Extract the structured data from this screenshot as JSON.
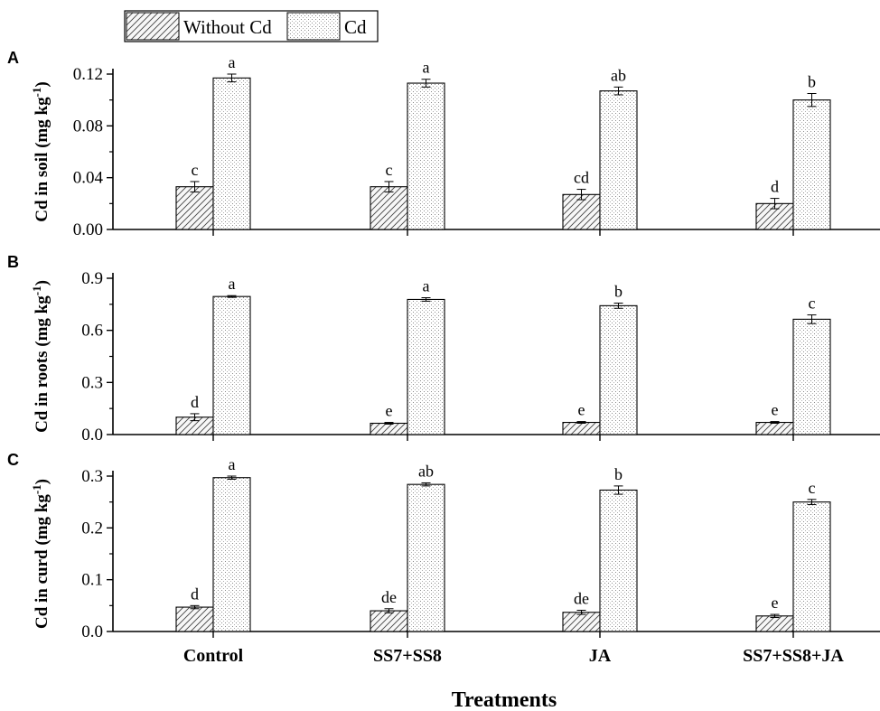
{
  "legend": [
    {
      "key": "without",
      "label": "Without Cd"
    },
    {
      "key": "cd",
      "label": "Cd"
    }
  ],
  "xlabel": "Treatments",
  "chart_data": [
    {
      "type": "bar",
      "panel": "A",
      "ylabel": "Cd in soil (mg kg",
      "ylabel_sup": "-1",
      "ylabel_close": ")",
      "ylim": [
        0,
        0.12
      ],
      "yticks": [
        0,
        0.04,
        0.08,
        0.12
      ],
      "ytick_labels": [
        "0.00",
        "0.04",
        "0.08",
        "0.12"
      ],
      "categories": [
        "Control",
        "SS7+SS8",
        "JA",
        "SS7+SS8+JA"
      ],
      "series": [
        {
          "name": "Without Cd",
          "values": [
            0.033,
            0.033,
            0.027,
            0.02
          ],
          "errors": [
            0.004,
            0.004,
            0.004,
            0.004
          ],
          "letters": [
            "c",
            "c",
            "cd",
            "d"
          ]
        },
        {
          "name": "Cd",
          "values": [
            0.117,
            0.113,
            0.107,
            0.1
          ],
          "errors": [
            0.003,
            0.003,
            0.003,
            0.005
          ],
          "letters": [
            "a",
            "a",
            "ab",
            "b"
          ]
        }
      ]
    },
    {
      "type": "bar",
      "panel": "B",
      "ylabel": "Cd in roots (mg kg",
      "ylabel_sup": "-1",
      "ylabel_close": ")",
      "ylim": [
        0,
        0.9
      ],
      "yticks": [
        0,
        0.3,
        0.6,
        0.9
      ],
      "ytick_labels": [
        "0.0",
        "0.3",
        "0.6",
        "0.9"
      ],
      "categories": [
        "Control",
        "SS7+SS8",
        "JA",
        "SS7+SS8+JA"
      ],
      "series": [
        {
          "name": "Without Cd",
          "values": [
            0.1,
            0.065,
            0.07,
            0.07
          ],
          "errors": [
            0.02,
            0.005,
            0.005,
            0.005
          ],
          "letters": [
            "d",
            "e",
            "e",
            "e"
          ]
        },
        {
          "name": "Cd",
          "values": [
            0.795,
            0.778,
            0.742,
            0.664
          ],
          "errors": [
            0.005,
            0.01,
            0.015,
            0.025
          ],
          "letters": [
            "a",
            "a",
            "b",
            "c"
          ]
        }
      ]
    },
    {
      "type": "bar",
      "panel": "C",
      "ylabel": "Cd in curd (mg kg",
      "ylabel_sup": "-1",
      "ylabel_close": ")",
      "ylim": [
        0,
        0.3
      ],
      "yticks": [
        0,
        0.1,
        0.2,
        0.3
      ],
      "ytick_labels": [
        "0.0",
        "0.1",
        "0.2",
        "0.3"
      ],
      "categories": [
        "Control",
        "SS7+SS8",
        "JA",
        "SS7+SS8+JA"
      ],
      "series": [
        {
          "name": "Without Cd",
          "values": [
            0.047,
            0.04,
            0.037,
            0.03
          ],
          "errors": [
            0.003,
            0.004,
            0.004,
            0.003
          ],
          "letters": [
            "d",
            "de",
            "de",
            "e"
          ]
        },
        {
          "name": "Cd",
          "values": [
            0.297,
            0.284,
            0.273,
            0.25
          ],
          "errors": [
            0.003,
            0.003,
            0.008,
            0.005
          ],
          "letters": [
            "a",
            "ab",
            "b",
            "c"
          ]
        }
      ]
    }
  ]
}
